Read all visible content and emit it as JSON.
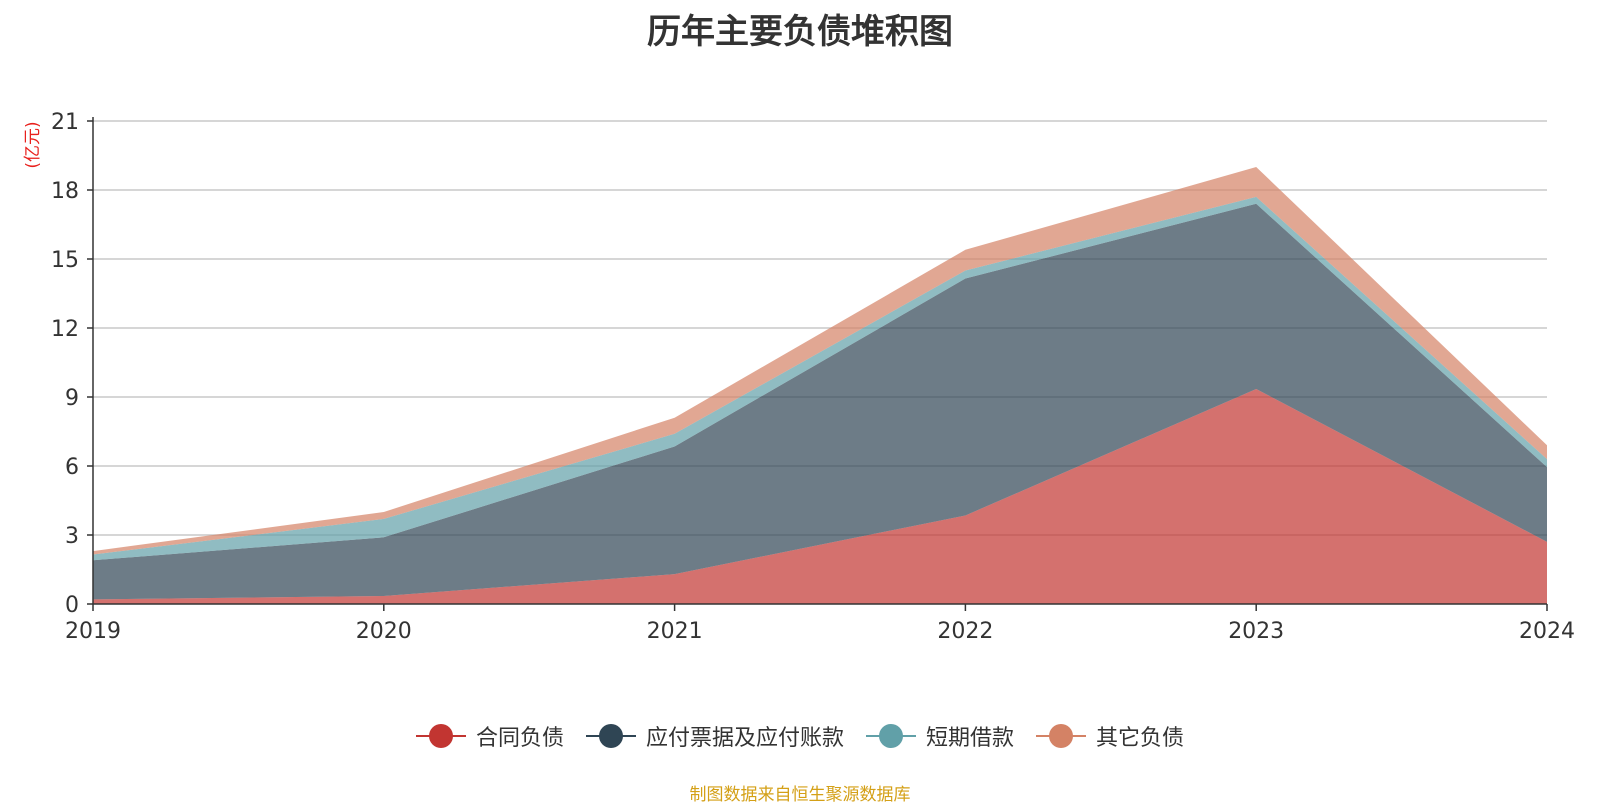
{
  "title": "历年主要负债堆积图",
  "source": "制图数据来自恒生聚源数据库",
  "chart_data": {
    "type": "area",
    "stacked": true,
    "title": "历年主要负债堆积图",
    "ylabel": "(亿元)",
    "x": [
      "2019",
      "2020",
      "2021",
      "2022",
      "2023",
      "2024"
    ],
    "yticks": [
      "0",
      "3",
      "6",
      "9",
      "12",
      "15",
      "18",
      "21"
    ],
    "ylim": [
      0,
      21
    ],
    "grid": true,
    "legend_position": "bottom",
    "series": [
      {
        "name": "合同负债",
        "color": "#c23531",
        "values": [
          0.2,
          0.35,
          1.3,
          3.85,
          9.35,
          2.7
        ]
      },
      {
        "name": "应付票据及应付账款",
        "color": "#2f4554",
        "values": [
          1.7,
          2.55,
          5.55,
          10.3,
          8.05,
          3.25
        ]
      },
      {
        "name": "短期借款",
        "color": "#61a0a8",
        "values": [
          0.25,
          0.8,
          0.55,
          0.35,
          0.3,
          0.35
        ]
      },
      {
        "name": "其它负债",
        "color": "#d48265",
        "values": [
          0.15,
          0.3,
          0.7,
          0.9,
          1.3,
          0.6
        ]
      }
    ]
  }
}
